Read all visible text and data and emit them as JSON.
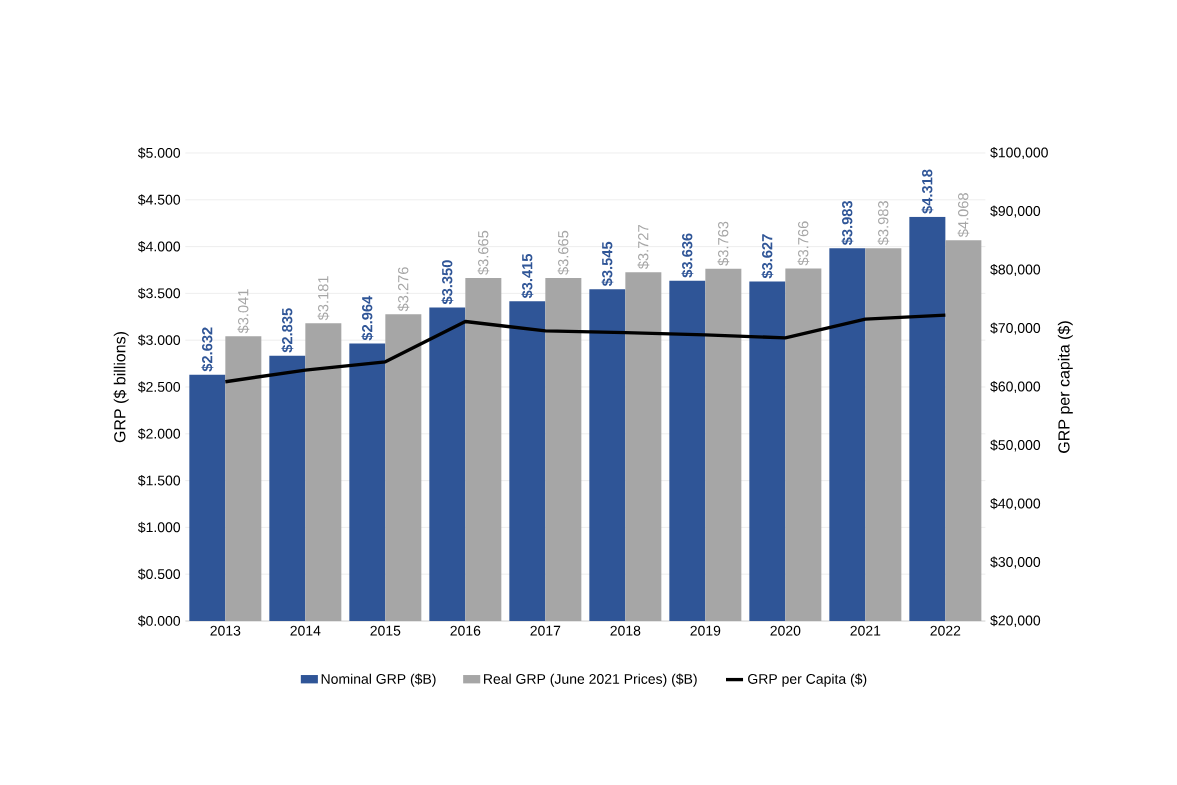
{
  "chart_data": {
    "type": "bar",
    "ylabel": "GRP ($ billions)",
    "y2label": "GRP per capita ($)",
    "categories": [
      "2013",
      "2014",
      "2015",
      "2016",
      "2017",
      "2018",
      "2019",
      "2020",
      "2021",
      "2022"
    ],
    "series": [
      {
        "name": "Nominal GRP ($B)",
        "color": "#2f5597",
        "values": [
          2.632,
          2.835,
          2.964,
          3.35,
          3.415,
          3.545,
          3.636,
          3.627,
          3.983,
          4.318
        ],
        "value_labels": [
          "$2.632",
          "$2.835",
          "$2.964",
          "$3.350",
          "$3.415",
          "$3.545",
          "$3.636",
          "$3.627",
          "$3.983",
          "$4.318"
        ]
      },
      {
        "name": "Real GRP (June 2021 Prices) ($B)",
        "color": "#a6a6a6",
        "values": [
          3.041,
          3.181,
          3.276,
          3.665,
          3.665,
          3.727,
          3.763,
          3.766,
          3.983,
          4.068
        ],
        "value_labels": [
          "$3.041",
          "$3.181",
          "$3.276",
          "$3.665",
          "$3.665",
          "$3.727",
          "$3.763",
          "$3.766",
          "$3.983",
          "$4.068"
        ]
      },
      {
        "name": "GRP per Capita ($)",
        "type": "line",
        "axis": "y2",
        "color": "#000000",
        "values": [
          60900,
          62900,
          64300,
          71200,
          69600,
          69300,
          68900,
          68400,
          71600,
          72300
        ]
      }
    ],
    "ylim": [
      0,
      5
    ],
    "yticks": [
      {
        "value": 0,
        "label": "$0.000"
      },
      {
        "value": 0.5,
        "label": "$0.500"
      },
      {
        "value": 1,
        "label": "$1.000"
      },
      {
        "value": 1.5,
        "label": "$1.500"
      },
      {
        "value": 2,
        "label": "$2.000"
      },
      {
        "value": 2.5,
        "label": "$2.500"
      },
      {
        "value": 3,
        "label": "$3.000"
      },
      {
        "value": 3.5,
        "label": "$3.500"
      },
      {
        "value": 4,
        "label": "$4.000"
      },
      {
        "value": 4.5,
        "label": "$4.500"
      },
      {
        "value": 5,
        "label": "$5.000"
      }
    ],
    "y2lim": [
      20000,
      100000
    ],
    "y2ticks": [
      {
        "value": 20000,
        "label": "$20,000"
      },
      {
        "value": 30000,
        "label": "$30,000"
      },
      {
        "value": 40000,
        "label": "$40,000"
      },
      {
        "value": 50000,
        "label": "$50,000"
      },
      {
        "value": 60000,
        "label": "$60,000"
      },
      {
        "value": 70000,
        "label": "$70,000"
      },
      {
        "value": 80000,
        "label": "$80,000"
      },
      {
        "value": 90000,
        "label": "$90,000"
      },
      {
        "value": 100000,
        "label": "$100,000"
      }
    ],
    "grid": "y",
    "legend": "bottom",
    "marker": "none",
    "line_style": "solid"
  }
}
